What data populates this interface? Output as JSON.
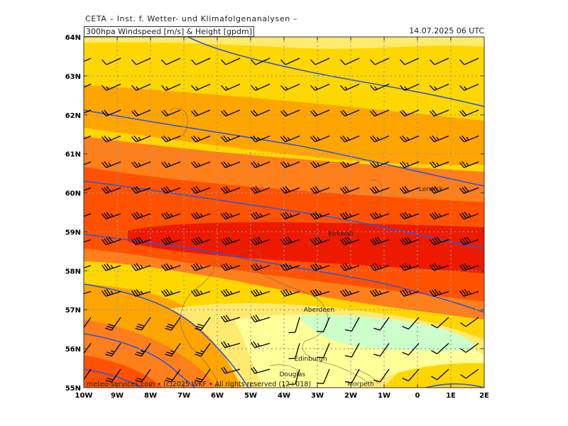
{
  "header": {
    "org": "CETA – Inst. f. Wetter- und Klimafolgenanalysen –",
    "product": "300hpa Windspeed [m/s] & Height [gpdm]",
    "datetime": "14.07.2025 06 UTC"
  },
  "footer": "meteo-services.com  •  (c)2025 WKF  •  All rights reserved (12+018)",
  "axes": {
    "lat_labels": [
      "64N",
      "63N",
      "62N",
      "61N",
      "60N",
      "59N",
      "58N",
      "57N",
      "56N",
      "55N"
    ],
    "lon_labels": [
      "10W",
      "9W",
      "8W",
      "7W",
      "6W",
      "5W",
      "4W",
      "3W",
      "2W",
      "1W",
      "0",
      "1E",
      "2E"
    ]
  },
  "cities": [
    {
      "name": "Lerwick",
      "lon": 0.4,
      "lat": 60.1
    },
    {
      "name": "Kirkwall",
      "lon": -2.3,
      "lat": 58.95
    },
    {
      "name": "Aberdeen",
      "lon": -2.95,
      "lat": 57.0
    },
    {
      "name": "Edinburgh",
      "lon": -3.2,
      "lat": 55.75
    },
    {
      "name": "Douglas",
      "lon": -3.75,
      "lat": 55.35
    },
    {
      "name": "Morpeth",
      "lon": -1.7,
      "lat": 55.1
    }
  ],
  "colors": {
    "light_green": "#ccffcc",
    "pale_yellow": "#ffff99",
    "yellow": "#ffea70",
    "gold": "#ffd700",
    "orange": "#ffa500",
    "dark_orange": "#ff7f1a",
    "orange_red": "#ff5200",
    "red": "#ee1a00",
    "contour": "#3355dd"
  }
}
